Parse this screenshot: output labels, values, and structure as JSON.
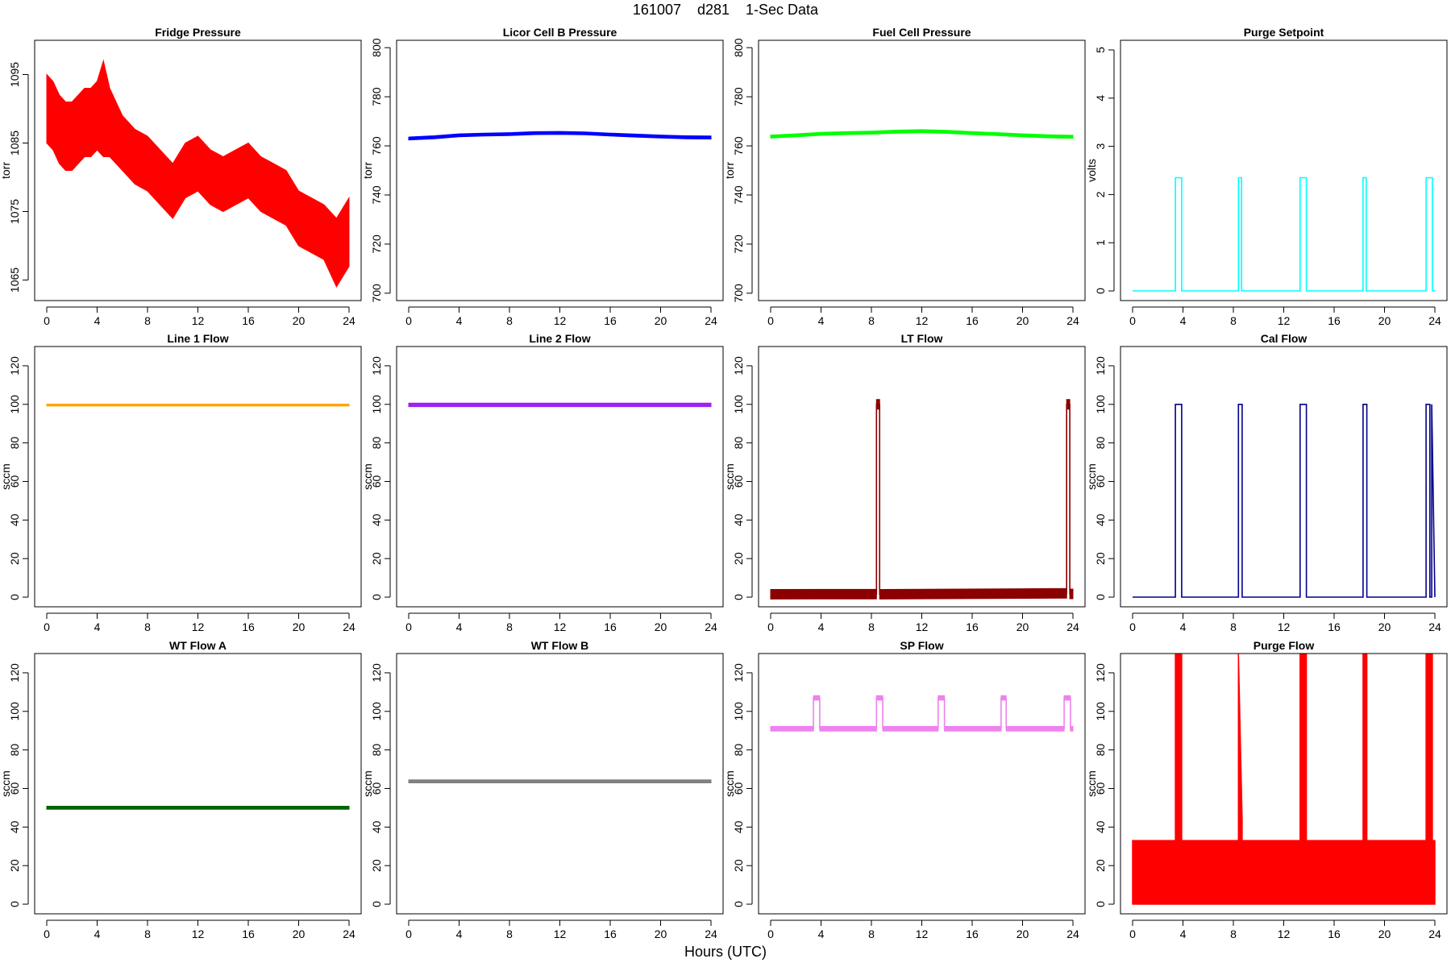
{
  "figure": {
    "title": "161007    d281    1-Sec Data",
    "xlabel": "Hours (UTC)"
  },
  "chart_data": [
    {
      "title": "Fridge Pressure",
      "type": "line",
      "ylabel": "torr",
      "color": "#ff0000",
      "xlim": [
        0,
        24
      ],
      "ylim": [
        1062,
        1100
      ],
      "xticks": [
        0,
        4,
        8,
        12,
        16,
        20,
        24
      ],
      "yticks": [
        1065,
        1075,
        1085,
        1095
      ],
      "x": [
        0,
        0.5,
        1,
        1.5,
        2,
        2.5,
        3,
        3.5,
        4,
        4.5,
        5,
        6,
        7,
        8,
        9,
        10,
        11,
        12,
        13,
        14,
        15,
        16,
        17,
        18,
        19,
        20,
        21,
        22,
        23,
        24
      ],
      "y": [
        1090,
        1089,
        1087,
        1086,
        1086,
        1087,
        1088,
        1088,
        1089,
        1090,
        1088,
        1085,
        1083,
        1082,
        1080,
        1078,
        1081,
        1082,
        1080,
        1079,
        1080,
        1081,
        1079,
        1078,
        1077,
        1074,
        1073,
        1072,
        1069,
        1072
      ],
      "band": [
        5,
        5,
        5,
        5,
        5,
        5,
        5,
        5,
        5,
        7,
        5,
        4,
        4,
        4,
        4,
        4,
        4,
        4,
        4,
        4,
        4,
        4,
        4,
        4,
        4,
        4,
        4,
        4,
        5,
        5
      ]
    },
    {
      "title": "Licor Cell B Pressure",
      "type": "line",
      "ylabel": "torr",
      "color": "#0000ff",
      "xlim": [
        0,
        24
      ],
      "ylim": [
        697,
        803
      ],
      "xticks": [
        0,
        4,
        8,
        12,
        16,
        20,
        24
      ],
      "yticks": [
        700,
        720,
        740,
        760,
        780,
        800
      ],
      "x": [
        0,
        2,
        4,
        6,
        8,
        10,
        12,
        14,
        16,
        18,
        20,
        22,
        24
      ],
      "y": [
        763,
        763.5,
        764.3,
        764.6,
        764.8,
        765.2,
        765.3,
        765.1,
        764.6,
        764.2,
        763.8,
        763.5,
        763.4
      ],
      "band": [
        0.6,
        0.6,
        0.6,
        0.6,
        0.6,
        0.6,
        0.6,
        0.6,
        0.6,
        0.6,
        0.6,
        0.6,
        0.6
      ]
    },
    {
      "title": "Fuel Cell Pressure",
      "type": "line",
      "ylabel": "torr",
      "color": "#00ff00",
      "xlim": [
        0,
        24
      ],
      "ylim": [
        697,
        803
      ],
      "xticks": [
        0,
        4,
        8,
        12,
        16,
        20,
        24
      ],
      "yticks": [
        700,
        720,
        740,
        760,
        780,
        800
      ],
      "x": [
        0,
        2,
        4,
        6,
        8,
        10,
        12,
        14,
        16,
        18,
        20,
        22,
        24
      ],
      "y": [
        763.8,
        764.3,
        764.9,
        765.2,
        765.4,
        765.8,
        766,
        765.7,
        765.2,
        764.8,
        764.3,
        763.9,
        763.7
      ],
      "band": [
        0.6,
        0.6,
        0.6,
        0.6,
        0.6,
        0.6,
        0.6,
        0.6,
        0.6,
        0.6,
        0.6,
        0.6,
        0.6
      ]
    },
    {
      "title": "Purge Setpoint",
      "type": "line",
      "ylabel": "volts",
      "color": "#00ffff",
      "xlim": [
        0,
        24
      ],
      "ylim": [
        -0.2,
        5.2
      ],
      "xticks": [
        0,
        4,
        8,
        12,
        16,
        20,
        24
      ],
      "yticks": [
        0,
        1,
        2,
        3,
        4,
        5
      ],
      "x": [
        0,
        3.4,
        3.4,
        3.9,
        3.9,
        8.4,
        8.4,
        8.65,
        8.65,
        13.3,
        13.3,
        13.8,
        13.8,
        18.3,
        18.3,
        18.55,
        18.55,
        23.3,
        23.3,
        23.8,
        23.8,
        24
      ],
      "y": [
        0,
        0,
        2.35,
        2.35,
        0,
        0,
        2.35,
        2.35,
        0,
        0,
        2.35,
        2.35,
        0,
        0,
        2.35,
        2.35,
        0,
        0,
        2.35,
        2.35,
        0,
        0
      ],
      "band": []
    },
    {
      "title": "Line 1 Flow",
      "type": "line",
      "ylabel": "sccm",
      "color": "#ffa500",
      "xlim": [
        0,
        24
      ],
      "ylim": [
        -5,
        130
      ],
      "xticks": [
        0,
        4,
        8,
        12,
        16,
        20,
        24
      ],
      "yticks": [
        0,
        20,
        40,
        60,
        80,
        100,
        120
      ],
      "x": [
        0,
        6,
        12,
        18,
        24
      ],
      "y": [
        99.6,
        99.6,
        99.6,
        99.6,
        99.6
      ],
      "band": [
        0.5,
        0.5,
        0.5,
        0.5,
        0.5
      ]
    },
    {
      "title": "Line 2 Flow",
      "type": "line",
      "ylabel": "sccm",
      "color": "#a020f0",
      "xlim": [
        0,
        24
      ],
      "ylim": [
        -5,
        130
      ],
      "xticks": [
        0,
        4,
        8,
        12,
        16,
        20,
        24
      ],
      "yticks": [
        0,
        20,
        40,
        60,
        80,
        100,
        120
      ],
      "x": [
        0,
        6,
        12,
        18,
        24
      ],
      "y": [
        99.7,
        99.7,
        99.7,
        99.7,
        99.7
      ],
      "band": [
        0.9,
        0.9,
        0.9,
        0.9,
        0.9
      ]
    },
    {
      "title": "LT Flow",
      "type": "line",
      "ylabel": "sccm",
      "color": "#8b0000",
      "xlim": [
        0,
        24
      ],
      "ylim": [
        -5,
        130
      ],
      "xticks": [
        0,
        4,
        8,
        12,
        16,
        20,
        24
      ],
      "yticks": [
        0,
        20,
        40,
        60,
        80,
        100,
        120
      ],
      "x": [
        0,
        8.4,
        8.4,
        8.65,
        8.65,
        23.5,
        23.5,
        23.75,
        23.75,
        24
      ],
      "y": [
        1.5,
        1.6,
        100,
        100,
        1.5,
        2,
        100,
        100,
        1.7,
        1.7
      ],
      "band": [
        2.5,
        2.5,
        2.5,
        2.5,
        2.5,
        2.5,
        2.5,
        2.5,
        2.5,
        2.5
      ]
    },
    {
      "title": "Cal Flow",
      "type": "line",
      "ylabel": "sccm",
      "color": "#00008b",
      "xlim": [
        0,
        24
      ],
      "ylim": [
        -5,
        130
      ],
      "xticks": [
        0,
        4,
        8,
        12,
        16,
        20,
        24
      ],
      "yticks": [
        0,
        20,
        40,
        60,
        80,
        100,
        120
      ],
      "x": [
        0,
        3.4,
        3.4,
        3.9,
        3.9,
        8.4,
        8.4,
        8.7,
        8.7,
        13.3,
        13.3,
        13.8,
        13.8,
        18.3,
        18.3,
        18.6,
        18.6,
        23.3,
        23.3,
        23.6,
        23.6,
        23.75,
        23.75,
        24
      ],
      "y": [
        0,
        0,
        100,
        100,
        0,
        0,
        100,
        100,
        0,
        0,
        100,
        100,
        0,
        0,
        100,
        100,
        0,
        0,
        100,
        100,
        0,
        0,
        100,
        0
      ],
      "band": []
    },
    {
      "title": "WT Flow A",
      "type": "line",
      "ylabel": "sccm",
      "color": "#006400",
      "xlim": [
        0,
        24
      ],
      "ylim": [
        -5,
        130
      ],
      "xticks": [
        0,
        4,
        8,
        12,
        16,
        20,
        24
      ],
      "yticks": [
        0,
        20,
        40,
        60,
        80,
        100,
        120
      ],
      "x": [
        0,
        6,
        12,
        18,
        24
      ],
      "y": [
        50,
        50,
        50,
        50,
        50
      ],
      "band": [
        0.8,
        0.8,
        0.8,
        0.8,
        0.8
      ]
    },
    {
      "title": "WT Flow B",
      "type": "line",
      "ylabel": "sccm",
      "color": "#808080",
      "xlim": [
        0,
        24
      ],
      "ylim": [
        -5,
        130
      ],
      "xticks": [
        0,
        4,
        8,
        12,
        16,
        20,
        24
      ],
      "yticks": [
        0,
        20,
        40,
        60,
        80,
        100,
        120
      ],
      "x": [
        0,
        6,
        12,
        18,
        24
      ],
      "y": [
        63.7,
        63.7,
        63.7,
        63.7,
        63.7
      ],
      "band": [
        0.8,
        0.8,
        0.8,
        0.8,
        0.8
      ]
    },
    {
      "title": "SP Flow",
      "type": "line",
      "ylabel": "sccm",
      "color": "#ee82ee",
      "xlim": [
        0,
        24
      ],
      "ylim": [
        -5,
        130
      ],
      "xticks": [
        0,
        4,
        8,
        12,
        16,
        20,
        24
      ],
      "yticks": [
        0,
        20,
        40,
        60,
        80,
        100,
        120
      ],
      "x": [
        0,
        3.4,
        3.4,
        3.9,
        3.9,
        8.4,
        8.4,
        8.9,
        8.9,
        13.3,
        13.3,
        13.8,
        13.8,
        18.3,
        18.3,
        18.7,
        18.7,
        23.3,
        23.3,
        23.8,
        23.8,
        24
      ],
      "y": [
        91,
        91,
        107,
        107,
        91,
        91,
        107,
        107,
        91,
        91,
        107,
        107,
        91,
        91,
        107,
        107,
        91,
        91,
        107,
        107,
        91,
        91
      ],
      "band": [
        1.2,
        1.2,
        1.2,
        1.2,
        1.2,
        1.2,
        1.2,
        1.2,
        1.2,
        1.2,
        1.2,
        1.2,
        1.2,
        1.2,
        1.2,
        1.2,
        1.2,
        1.2,
        1.2,
        1.2,
        1.2,
        1.2
      ]
    },
    {
      "title": "Purge Flow",
      "type": "area",
      "ylabel": "sccm",
      "color": "#ff0000",
      "xlim": [
        0,
        24
      ],
      "ylim": [
        -5,
        130
      ],
      "xticks": [
        0,
        4,
        8,
        12,
        16,
        20,
        24
      ],
      "yticks": [
        0,
        20,
        40,
        60,
        80,
        100,
        120
      ],
      "x": [
        0,
        3.4,
        3.4,
        3.9,
        3.9,
        8.4,
        8.4,
        8.7,
        8.7,
        13.3,
        13.3,
        13.8,
        13.8,
        18.3,
        18.3,
        18.6,
        18.6,
        23.3,
        23.3,
        23.8,
        23.8,
        24
      ],
      "y": [
        33,
        33,
        130,
        130,
        33,
        33,
        130,
        44,
        33,
        33,
        130,
        130,
        33,
        33,
        130,
        130,
        33,
        33,
        130,
        130,
        33,
        33
      ],
      "band": []
    }
  ]
}
